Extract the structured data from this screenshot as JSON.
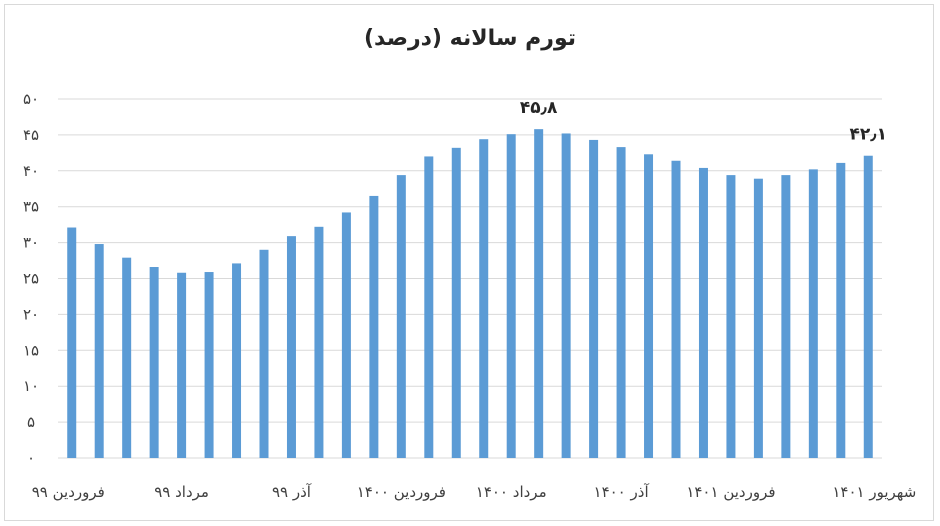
{
  "chart_data": {
    "type": "bar",
    "title": "تورم سالانه (درصد)",
    "xlabel": "",
    "ylabel": "",
    "ylim": [
      0,
      50
    ],
    "yticks": [
      "۰",
      "۵",
      "۱۰",
      "۱۵",
      "۲۰",
      "۲۵",
      "۳۰",
      "۳۵",
      "۴۰",
      "۴۵",
      "۵۰"
    ],
    "xtick_labels": [
      "فروردین ۹۹",
      "مرداد ۹۹",
      "آذر ۹۹",
      "فروردین ۱۴۰۰",
      "مرداد ۱۴۰۰",
      "آذر ۱۴۰۰",
      "فروردین ۱۴۰۱",
      "شهریور ۱۴۰۱"
    ],
    "xtick_bar_index": [
      0,
      4,
      8,
      12,
      16,
      20,
      24,
      29
    ],
    "values": [
      32.1,
      29.8,
      27.9,
      26.6,
      25.8,
      25.9,
      27.1,
      29.0,
      30.9,
      32.2,
      34.2,
      36.5,
      39.4,
      42.0,
      43.2,
      44.4,
      45.1,
      45.8,
      45.2,
      44.3,
      43.3,
      42.3,
      41.4,
      40.4,
      39.4,
      38.9,
      39.4,
      40.2,
      41.1,
      42.1
    ],
    "data_labels": [
      {
        "index": 17,
        "text": "۴۵٫۸"
      },
      {
        "index": 29,
        "text": "۴۲٫۱"
      }
    ],
    "colors": {
      "bar": "#5b9bd5",
      "grid": "#d9d9d9",
      "text": "#404040"
    },
    "grid": true,
    "legend": "none"
  }
}
